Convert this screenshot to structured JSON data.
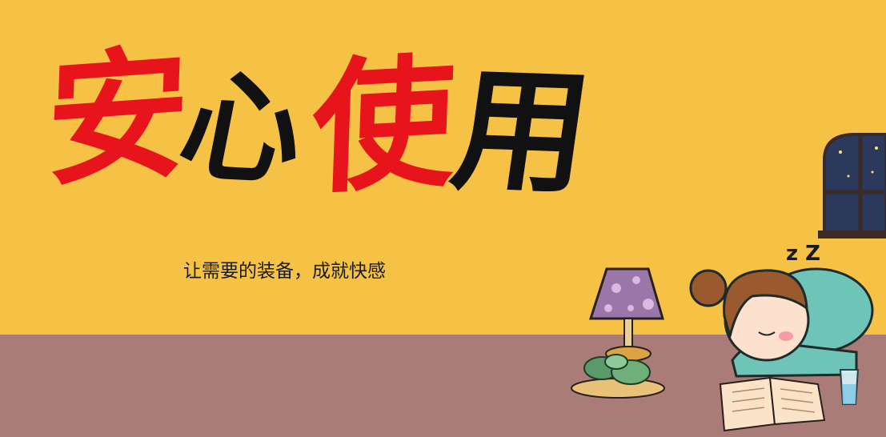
{
  "title": {
    "chars": [
      "安",
      "心",
      "使",
      "用"
    ]
  },
  "subtitle": "让需要的装备，成就快感",
  "sleep_text": "z Z",
  "colors": {
    "wall": "#f6c246",
    "floor": "#a97c78",
    "accent_red": "#e8141b",
    "ink_black": "#111111"
  },
  "icons": [
    "night-window-icon",
    "table-lamp-icon",
    "succulent-plant-icon",
    "sleeping-girl-icon",
    "open-book-icon",
    "water-glass-icon"
  ]
}
